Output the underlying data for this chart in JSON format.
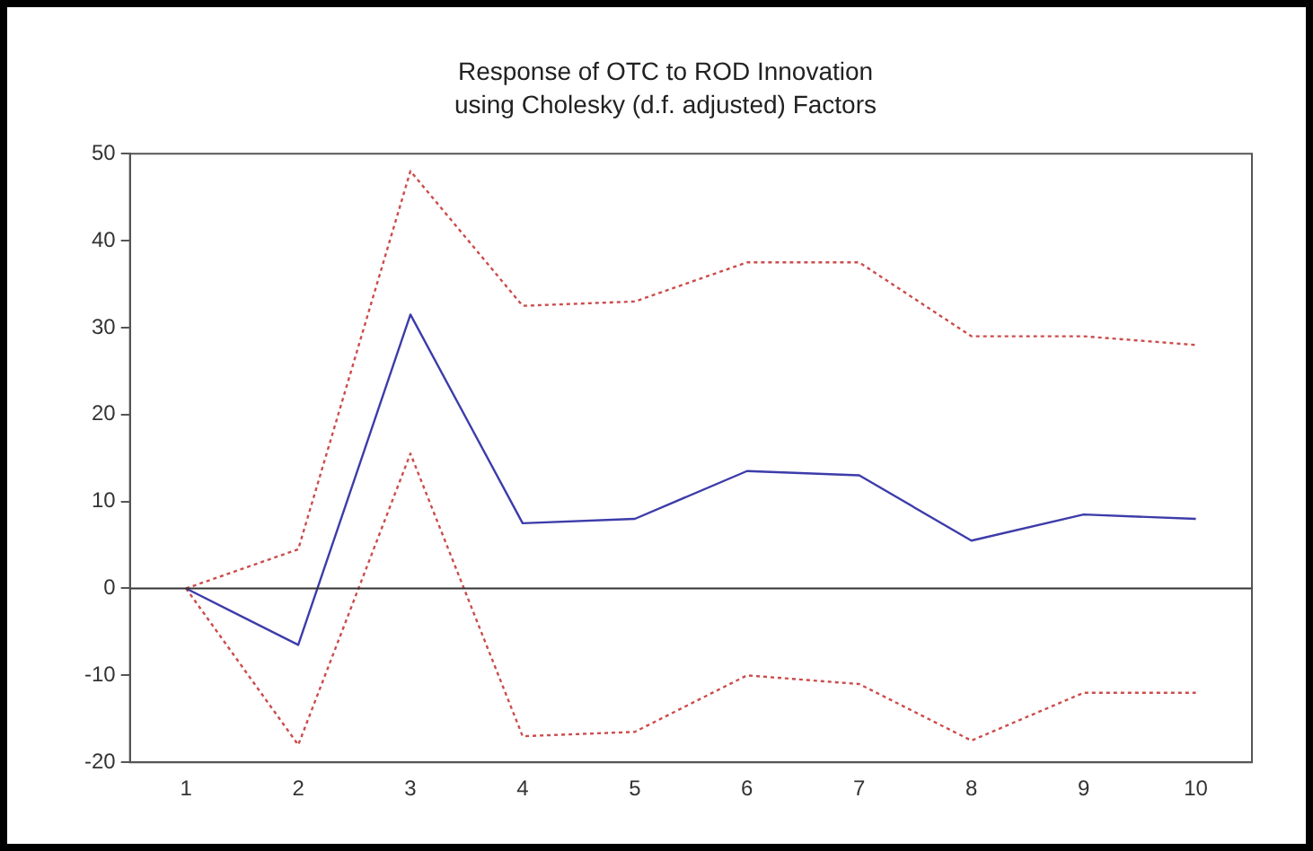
{
  "chart_data": {
    "type": "line",
    "title": "Response of OTC to ROD Innovation",
    "subtitle": "using Cholesky (d.f. adjusted) Factors",
    "categories": [
      "1",
      "2",
      "3",
      "4",
      "5",
      "6",
      "7",
      "8",
      "9",
      "10"
    ],
    "series": [
      {
        "color": "#3c3caa",
        "line_style": "solid",
        "values": [
          0,
          -6.5,
          31.5,
          7.5,
          8,
          13.5,
          13,
          5.5,
          8.5,
          8
        ]
      },
      {
        "color": "#cc4c4c",
        "line_style": "dotted",
        "values": [
          0,
          4.5,
          48,
          32.5,
          33,
          37.5,
          37.5,
          29,
          29,
          28
        ]
      },
      {
        "color": "#cc4c4c",
        "line_style": "dotted",
        "values": [
          0,
          -18,
          15.5,
          -17,
          -16.5,
          -10,
          -11,
          -17.5,
          -12,
          -12
        ]
      }
    ],
    "ylim": [
      -20,
      50
    ],
    "yticks": [
      -20,
      -10,
      0,
      10,
      20,
      30,
      40,
      50
    ],
    "ref_lines": [
      {
        "axis": "y",
        "value": 0,
        "color": "#333333"
      }
    ],
    "grid": false,
    "legend": false,
    "marker": "none"
  }
}
